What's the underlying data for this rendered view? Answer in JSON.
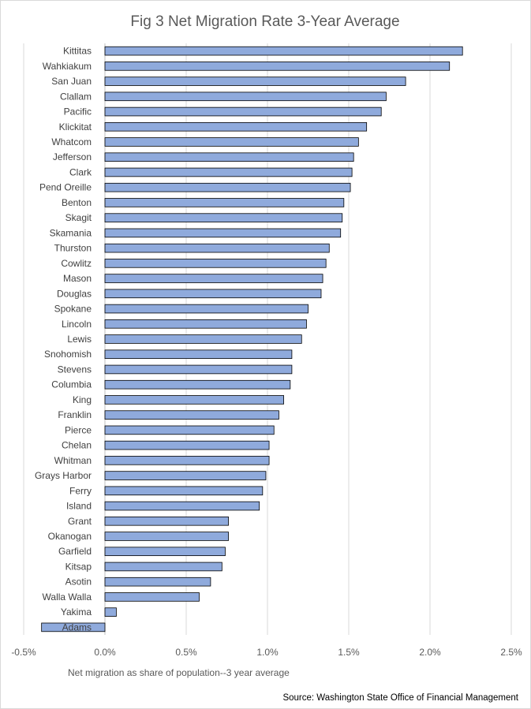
{
  "chart_data": {
    "type": "bar",
    "orientation": "horizontal",
    "title": "Fig 3 Net Migration Rate 3-Year Average",
    "xlabel": "Net migration as share of population--3 year average",
    "ylabel": "",
    "source": "Source: Washington State Office of Financial Management",
    "xlim": [
      -0.5,
      2.5
    ],
    "xticks": [
      -0.5,
      0.0,
      0.5,
      1.0,
      1.5,
      2.0,
      2.5
    ],
    "xtick_labels": [
      "-0.5%",
      "0.0%",
      "0.5%",
      "1.0%",
      "1.5%",
      "2.0%",
      "2.5%"
    ],
    "grid": "vertical",
    "bar_color": "#8faadc",
    "bar_edge_color": "#000000",
    "categories": [
      "Kittitas",
      "Wahkiakum",
      "San Juan",
      "Clallam",
      "Pacific",
      "Klickitat",
      "Whatcom",
      "Jefferson",
      "Clark",
      "Pend Oreille",
      "Benton",
      "Skagit",
      "Skamania",
      "Thurston",
      "Cowlitz",
      "Mason",
      "Douglas",
      "Spokane",
      "Lincoln",
      "Lewis",
      "Snohomish",
      "Stevens",
      "Columbia",
      "King",
      "Franklin",
      "Pierce",
      "Chelan",
      "Whitman",
      "Grays Harbor",
      "Ferry",
      "Island",
      "Grant",
      "Okanogan",
      "Garfield",
      "Kitsap",
      "Asotin",
      "Walla Walla",
      "Yakima",
      "Adams"
    ],
    "values": [
      2.2,
      2.12,
      1.85,
      1.73,
      1.7,
      1.61,
      1.56,
      1.53,
      1.52,
      1.51,
      1.47,
      1.46,
      1.45,
      1.38,
      1.36,
      1.34,
      1.33,
      1.25,
      1.24,
      1.21,
      1.15,
      1.15,
      1.14,
      1.1,
      1.07,
      1.04,
      1.01,
      1.01,
      0.99,
      0.97,
      0.95,
      0.76,
      0.76,
      0.74,
      0.72,
      0.65,
      0.58,
      0.07,
      -0.39
    ]
  }
}
